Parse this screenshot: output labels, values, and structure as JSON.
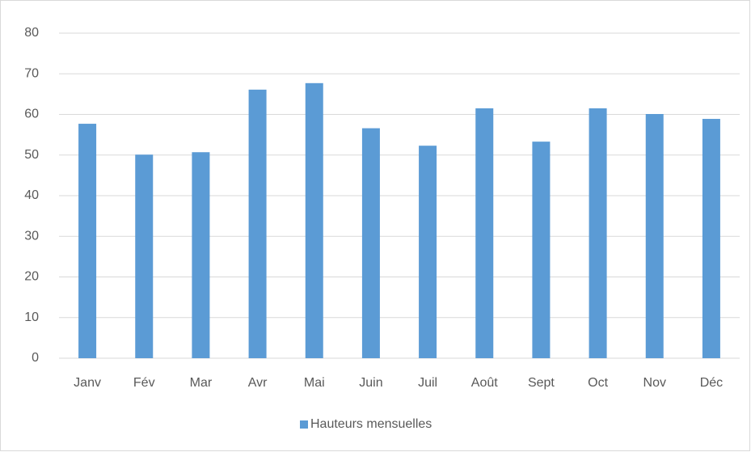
{
  "chart_data": {
    "type": "bar",
    "categories": [
      "Janv",
      "Fév",
      "Mar",
      "Avr",
      "Mai",
      "Juin",
      "Juil",
      "Août",
      "Sept",
      "Oct",
      "Nov",
      "Déc"
    ],
    "series": [
      {
        "name": "Hauteurs mensuelles",
        "color": "#5b9bd5",
        "values": [
          57.7,
          50.1,
          50.7,
          66.1,
          67.7,
          56.6,
          52.3,
          61.5,
          53.3,
          61.5,
          60.1,
          58.9
        ]
      }
    ],
    "ylim": [
      0,
      80
    ],
    "yticks": [
      0,
      10,
      20,
      30,
      40,
      50,
      60,
      70,
      80
    ],
    "grid": true,
    "legend": "bottom"
  }
}
